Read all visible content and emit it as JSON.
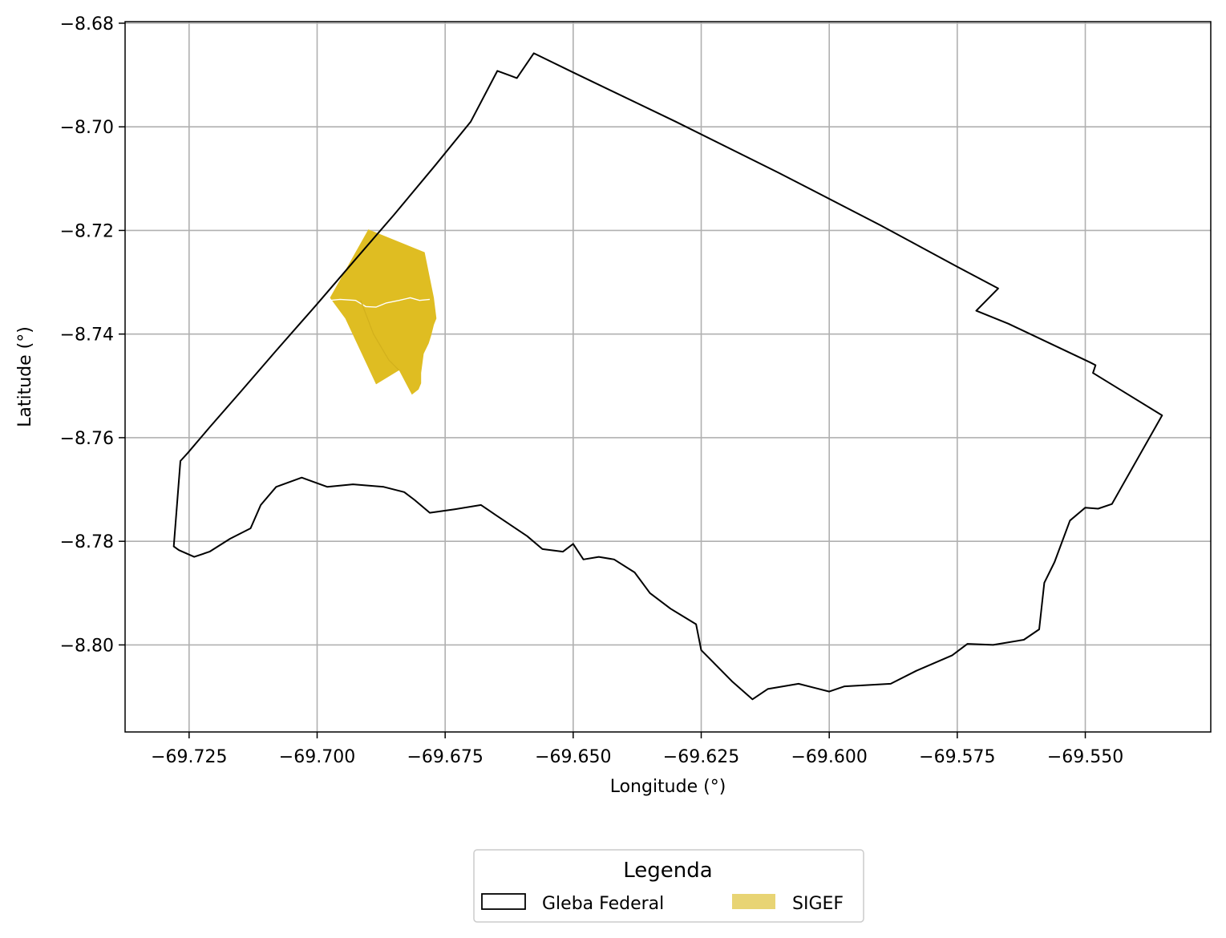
{
  "chart_data": {
    "type": "map",
    "xlabel": "Longitude (°)",
    "ylabel": "Latitude (°)",
    "xlim": [
      -69.7375,
      -69.5255
    ],
    "ylim": [
      -8.8168,
      -8.6797
    ],
    "xticks": [
      -69.725,
      -69.7,
      -69.675,
      -69.65,
      -69.625,
      -69.6,
      -69.575,
      -69.55
    ],
    "xtick_labels": [
      "−69.725",
      "−69.700",
      "−69.675",
      "−69.650",
      "−69.625",
      "−69.600",
      "−69.575",
      "−69.550"
    ],
    "yticks": [
      -8.68,
      -8.7,
      -8.72,
      -8.74,
      -8.76,
      -8.78,
      -8.8
    ],
    "ytick_labels": [
      "−8.68",
      "−8.70",
      "−8.72",
      "−8.74",
      "−8.76",
      "−8.78",
      "−8.80"
    ],
    "grid": true,
    "legend": {
      "title": "Legenda",
      "placement": "bottom-center",
      "entries": [
        {
          "label": "Gleba Federal",
          "style": "outline",
          "color": "#000000"
        },
        {
          "label": "SIGEF",
          "style": "fill",
          "color": "#e8d474"
        }
      ]
    },
    "layers": [
      {
        "name": "Gleba Federal",
        "type": "polygon",
        "fill": "none",
        "stroke": "#000000",
        "coordinates": [
          [
            -69.728,
            -8.781
          ],
          [
            -69.7267,
            -8.7645
          ],
          [
            -69.7253,
            -8.763
          ],
          [
            -69.721,
            -8.758
          ],
          [
            -69.715,
            -8.7512
          ],
          [
            -69.708,
            -8.7432
          ],
          [
            -69.7,
            -8.7342
          ],
          [
            -69.692,
            -8.725
          ],
          [
            -69.685,
            -8.717
          ],
          [
            -69.677,
            -8.7075
          ],
          [
            -69.67,
            -8.699
          ],
          [
            -69.6648,
            -8.6892
          ],
          [
            -69.661,
            -8.6906
          ],
          [
            -69.6577,
            -8.6858
          ],
          [
            -69.65,
            -8.6895
          ],
          [
            -69.63,
            -8.699
          ],
          [
            -69.61,
            -8.7088
          ],
          [
            -69.59,
            -8.719
          ],
          [
            -69.575,
            -8.727
          ],
          [
            -69.567,
            -8.7312
          ],
          [
            -69.5713,
            -8.7355
          ],
          [
            -69.565,
            -8.738
          ],
          [
            -69.549,
            -8.7455
          ],
          [
            -69.548,
            -8.746
          ],
          [
            -69.5485,
            -8.7475
          ],
          [
            -69.535,
            -8.7557
          ],
          [
            -69.5448,
            -8.7728
          ],
          [
            -69.5475,
            -8.7737
          ],
          [
            -69.55,
            -8.7735
          ],
          [
            -69.553,
            -8.776
          ],
          [
            -69.556,
            -8.784
          ],
          [
            -69.558,
            -8.788
          ],
          [
            -69.559,
            -8.797
          ],
          [
            -69.562,
            -8.799
          ],
          [
            -69.568,
            -8.8
          ],
          [
            -69.573,
            -8.7998
          ],
          [
            -69.576,
            -8.802
          ],
          [
            -69.583,
            -8.805
          ],
          [
            -69.588,
            -8.8075
          ],
          [
            -69.597,
            -8.808
          ],
          [
            -69.6,
            -8.809
          ],
          [
            -69.606,
            -8.8075
          ],
          [
            -69.612,
            -8.8085
          ],
          [
            -69.615,
            -8.8105
          ],
          [
            -69.619,
            -8.807
          ],
          [
            -69.625,
            -8.801
          ],
          [
            -69.626,
            -8.796
          ],
          [
            -69.631,
            -8.793
          ],
          [
            -69.635,
            -8.79
          ],
          [
            -69.638,
            -8.786
          ],
          [
            -69.642,
            -8.7835
          ],
          [
            -69.645,
            -8.783
          ],
          [
            -69.648,
            -8.7835
          ],
          [
            -69.65,
            -8.7805
          ],
          [
            -69.652,
            -8.782
          ],
          [
            -69.656,
            -8.7815
          ],
          [
            -69.659,
            -8.779
          ],
          [
            -69.662,
            -8.777
          ],
          [
            -69.665,
            -8.775
          ],
          [
            -69.668,
            -8.773
          ],
          [
            -69.673,
            -8.7738
          ],
          [
            -69.678,
            -8.7745
          ],
          [
            -69.681,
            -8.772
          ],
          [
            -69.683,
            -8.7705
          ],
          [
            -69.687,
            -8.7695
          ],
          [
            -69.693,
            -8.769
          ],
          [
            -69.698,
            -8.7695
          ],
          [
            -69.703,
            -8.7677
          ],
          [
            -69.708,
            -8.7695
          ],
          [
            -69.711,
            -8.773
          ],
          [
            -69.713,
            -8.7775
          ],
          [
            -69.717,
            -8.7795
          ],
          [
            -69.721,
            -8.782
          ],
          [
            -69.724,
            -8.783
          ],
          [
            -69.727,
            -8.7817
          ],
          [
            -69.728,
            -8.781
          ]
        ]
      },
      {
        "name": "SIGEF",
        "type": "polygon",
        "fill": "#dfbd22",
        "stroke": "#ffffff",
        "coordinates": [
          [
            -69.69,
            -8.7198
          ],
          [
            -69.679,
            -8.7242
          ],
          [
            -69.6772,
            -8.733
          ],
          [
            -69.6767,
            -8.737
          ],
          [
            -69.6772,
            -8.7382
          ],
          [
            -69.6777,
            -8.7402
          ],
          [
            -69.6782,
            -8.7418
          ],
          [
            -69.6792,
            -8.7438
          ],
          [
            -69.6797,
            -8.7475
          ],
          [
            -69.6797,
            -8.7495
          ],
          [
            -69.6802,
            -8.7507
          ],
          [
            -69.6815,
            -8.7517
          ],
          [
            -69.684,
            -8.747
          ],
          [
            -69.6885,
            -8.7497
          ],
          [
            -69.6945,
            -8.737
          ],
          [
            -69.6975,
            -8.733
          ],
          [
            -69.69,
            -8.7198
          ]
        ]
      }
    ]
  }
}
